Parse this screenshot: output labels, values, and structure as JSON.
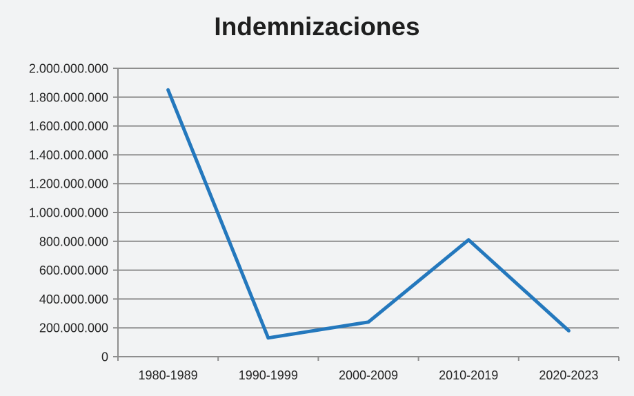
{
  "title": "Indemnizaciones",
  "colors": {
    "background": "#f2f3f4",
    "line": "#2478bd",
    "grid": "#8e8e8e",
    "axis": "#8e8e8e",
    "title": "#1f1f1f",
    "label": "#262626"
  },
  "chart_data": {
    "type": "line",
    "title": "Indemnizaciones",
    "categories": [
      "1980-1989",
      "1990-1999",
      "2000-2009",
      "2010-2019",
      "2020-2023"
    ],
    "values": [
      1850000000,
      130000000,
      240000000,
      810000000,
      180000000
    ],
    "series": [
      {
        "name": "Indemnizaciones",
        "values": [
          1850000000,
          130000000,
          240000000,
          810000000,
          180000000
        ]
      }
    ],
    "xlabel": "",
    "ylabel": "",
    "ylim": [
      0,
      2000000000
    ],
    "ytick_step": 200000000,
    "ytick_labels": [
      "0",
      "200.000.000",
      "400.000.000",
      "600.000.000",
      "800.000.000",
      "1.000.000.000",
      "1.200.000.000",
      "1.400.000.000",
      "1.600.000.000",
      "1.800.000.000",
      "2.000.000.000"
    ],
    "grid": true,
    "legend": false
  }
}
